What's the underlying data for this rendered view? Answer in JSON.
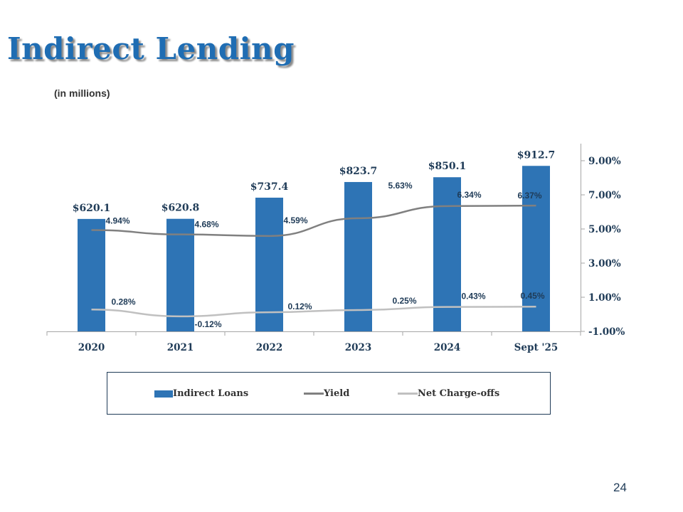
{
  "page": {
    "title": "Indirect Lending",
    "subtitle": "(in millions)",
    "page_number": "24"
  },
  "colors": {
    "title": "#1f6db3",
    "bar": "#2e74b5",
    "yield_line": "#808080",
    "chargeoff_line": "#c0c0c0",
    "text": "#1f3b57"
  },
  "chart_data": {
    "type": "bar",
    "title": "",
    "xlabel": "",
    "ylabel": "",
    "categories": [
      "2020",
      "2021",
      "2022",
      "2023",
      "2024",
      "Sept '25"
    ],
    "series": [
      {
        "name": "Indirect Loans",
        "type": "bar",
        "axis": "left",
        "values": [
          620.1,
          620.8,
          737.4,
          823.7,
          850.1,
          912.7
        ],
        "labels": [
          "$620.1",
          "$620.8",
          "$737.4",
          "$823.7",
          "$850.1",
          "$912.7"
        ]
      },
      {
        "name": "Yield",
        "type": "line",
        "axis": "right",
        "values": [
          4.94,
          4.68,
          4.59,
          5.63,
          6.34,
          6.37
        ],
        "labels": [
          "4.94%",
          "4.68%",
          "4.59%",
          "5.63%",
          "6.34%",
          "6.37%"
        ]
      },
      {
        "name": "Net Charge-offs",
        "type": "line",
        "axis": "right",
        "values": [
          0.28,
          -0.12,
          0.12,
          0.25,
          0.43,
          0.45
        ],
        "labels": [
          "0.28%",
          "-0.12%",
          "0.12%",
          "0.25%",
          "0.43%",
          "0.45%"
        ]
      }
    ],
    "y_left_range": [
      0,
      1000
    ],
    "y_right_range": [
      -1.0,
      10.0
    ],
    "y_right_ticks": [
      "9.00%",
      "7.00%",
      "5.00%",
      "3.00%",
      "1.00%",
      "-1.00%"
    ],
    "y_right_tick_values": [
      9,
      7,
      5,
      3,
      1,
      -1
    ],
    "grid": false,
    "legend_position": "bottom"
  },
  "legend": {
    "items": [
      "Indirect Loans",
      "Yield",
      "Net Charge-offs"
    ]
  }
}
